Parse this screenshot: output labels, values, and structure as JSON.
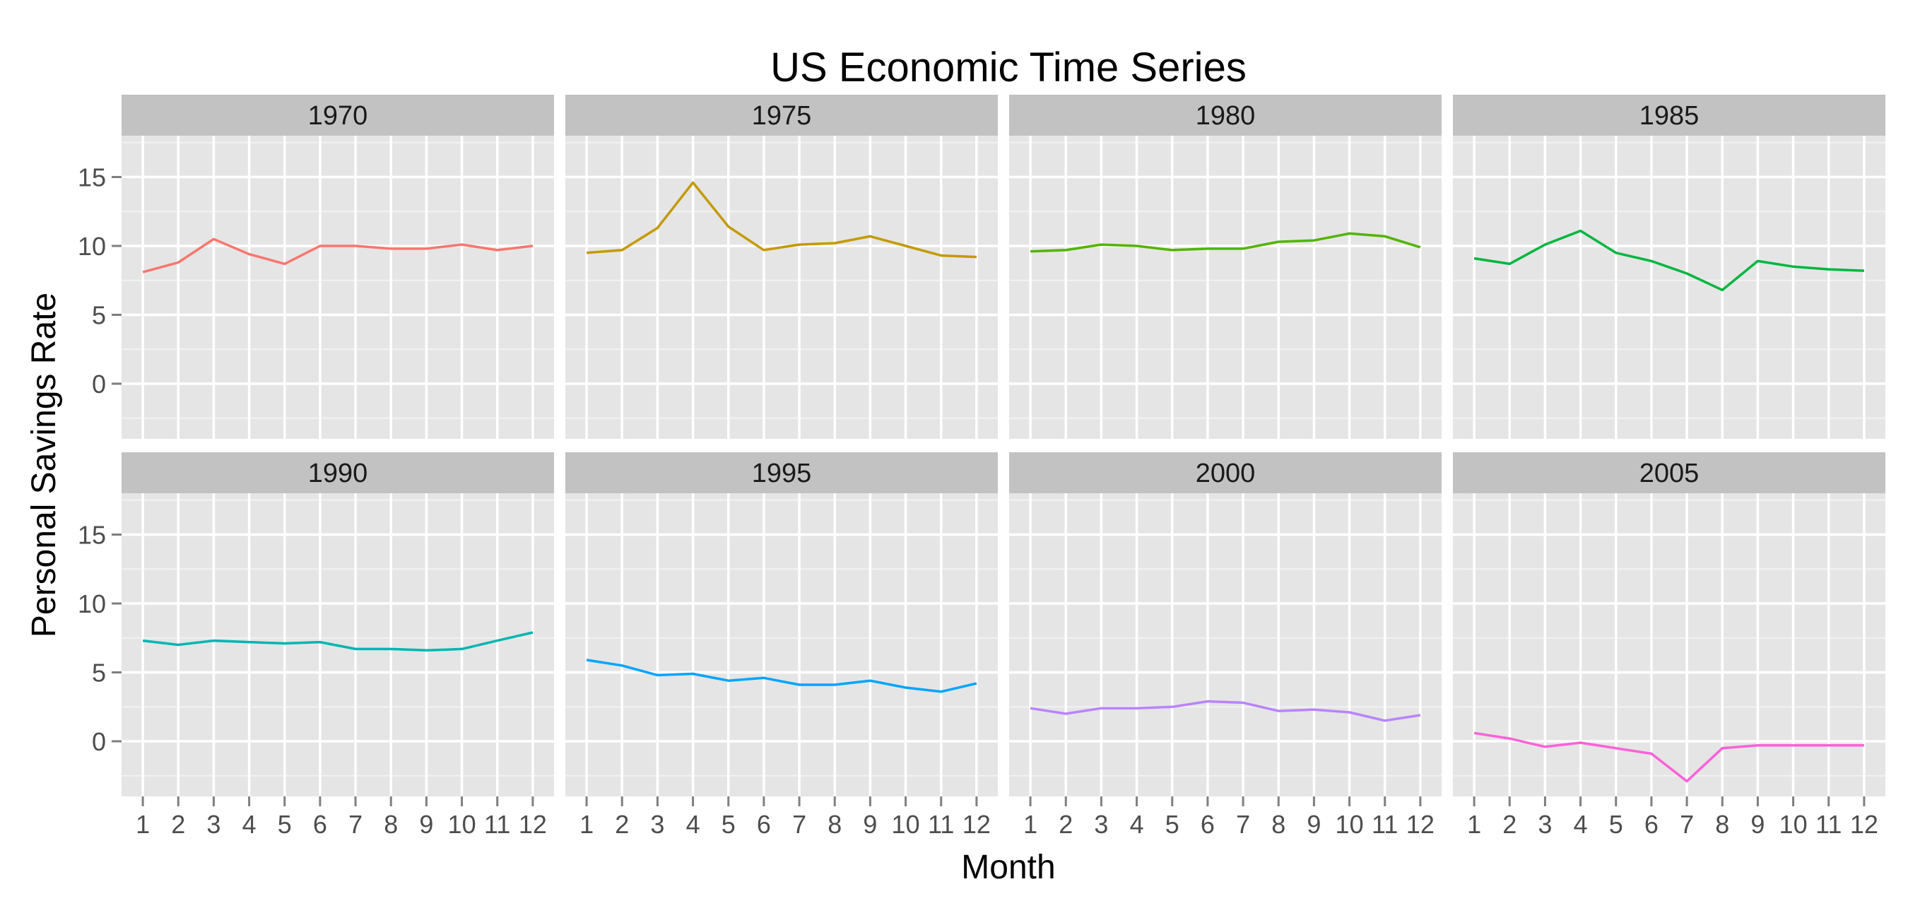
{
  "chart_data": {
    "type": "line",
    "title": "US Economic Time Series",
    "xlabel": "Month",
    "ylabel": "Personal Savings Rate",
    "x": [
      1,
      2,
      3,
      4,
      5,
      6,
      7,
      8,
      9,
      10,
      11,
      12
    ],
    "x_ticks": [
      "1",
      "2",
      "3",
      "4",
      "5",
      "6",
      "7",
      "8",
      "9",
      "10",
      "11",
      "12"
    ],
    "xlim": [
      0.4,
      12.6
    ],
    "ylim": [
      -4,
      18
    ],
    "y_ticks": [
      "0",
      "5",
      "10",
      "15"
    ],
    "grid": true,
    "layout": "facet grid, 2 rows × 4 columns",
    "panels": [
      {
        "year": "1970",
        "color": "#F8766D",
        "values": [
          8.1,
          8.8,
          10.5,
          9.4,
          8.7,
          10.0,
          10.0,
          9.8,
          9.8,
          10.1,
          9.7,
          10.0
        ]
      },
      {
        "year": "1975",
        "color": "#C49A00",
        "values": [
          9.5,
          9.7,
          11.3,
          14.6,
          11.4,
          9.7,
          10.1,
          10.2,
          10.7,
          10.0,
          9.3,
          9.2
        ]
      },
      {
        "year": "1980",
        "color": "#53B400",
        "values": [
          9.6,
          9.7,
          10.1,
          10.0,
          9.7,
          9.8,
          9.8,
          10.3,
          10.4,
          10.9,
          10.7,
          9.9
        ]
      },
      {
        "year": "1985",
        "color": "#00B63F",
        "values": [
          9.1,
          8.7,
          10.1,
          11.1,
          9.5,
          8.9,
          8.0,
          6.8,
          8.9,
          8.5,
          8.3,
          8.2
        ]
      },
      {
        "year": "1990",
        "color": "#00B6B1",
        "values": [
          7.3,
          7.0,
          7.3,
          7.2,
          7.1,
          7.2,
          6.7,
          6.7,
          6.6,
          6.7,
          7.3,
          7.9
        ]
      },
      {
        "year": "1995",
        "color": "#00A5FF",
        "values": [
          5.9,
          5.5,
          4.8,
          4.9,
          4.4,
          4.6,
          4.1,
          4.1,
          4.4,
          3.9,
          3.6,
          4.2
        ]
      },
      {
        "year": "2000",
        "color": "#B983FF",
        "values": [
          2.4,
          2.0,
          2.4,
          2.4,
          2.5,
          2.9,
          2.8,
          2.2,
          2.3,
          2.1,
          1.5,
          1.9
        ]
      },
      {
        "year": "2005",
        "color": "#FB61D7",
        "values": [
          0.6,
          0.2,
          -0.4,
          -0.1,
          -0.5,
          -0.9,
          -2.9,
          -0.5,
          -0.3,
          -0.3,
          -0.3,
          -0.3
        ]
      }
    ]
  }
}
